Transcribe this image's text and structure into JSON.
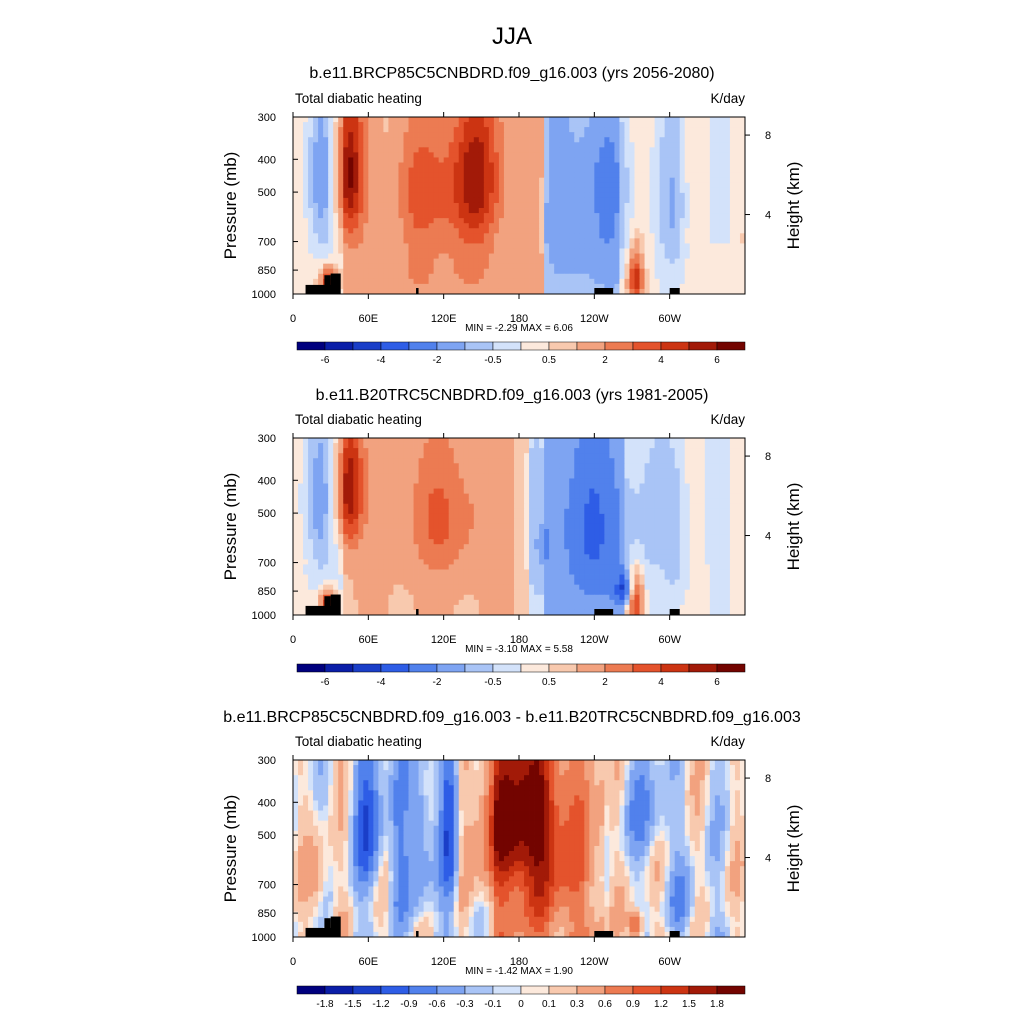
{
  "figure": {
    "title": "JJA"
  },
  "chart_data": [
    {
      "type": "heatmap",
      "title": "b.e11.BRCP85C5CNBDRD.f09_g16.003 (yrs 2056-2080)",
      "subtitle_left": "Total diabatic heating",
      "units": "K/day",
      "ylabel": "Pressure (mb)",
      "ylabel_right": "Height (km)",
      "x_ticks": [
        "0",
        "60E",
        "120E",
        "180",
        "120W",
        "60W"
      ],
      "x_tick_values": [
        0,
        60,
        120,
        180,
        240,
        300
      ],
      "xlim": [
        0,
        360
      ],
      "y_ticks": [
        "300",
        "400",
        "500",
        "700",
        "850",
        "1000"
      ],
      "y_tick_values": [
        300,
        400,
        500,
        700,
        850,
        1000
      ],
      "ylim": [
        1000,
        300
      ],
      "height_ticks": [
        "8",
        "4"
      ],
      "height_tick_values": [
        8,
        4
      ],
      "stats_label": "MIN =  -2.29  MAX =   6.06",
      "min": -2.29,
      "max": 6.06,
      "colorbar": {
        "levels": [
          "-6",
          "-4",
          "-2",
          "-0.5",
          "0.5",
          "2",
          "4",
          "6"
        ],
        "colors": [
          "#00007e",
          "#0a1ea8",
          "#1a3ec8",
          "#2e5de6",
          "#5181ec",
          "#7ea4f2",
          "#a9c4f6",
          "#d3e2fa",
          "#fce9dc",
          "#f8c9ae",
          "#f2a27f",
          "#ec7b52",
          "#e4532c",
          "#cc3412",
          "#a21a08",
          "#730400"
        ]
      },
      "anomalies": [
        {
          "lon": 45,
          "p": 440,
          "w": 7,
          "h": 150,
          "v": 5.0
        },
        {
          "lon": 110,
          "p": 500,
          "w": 20,
          "h": 150,
          "v": 2.5
        },
        {
          "lon": 148,
          "p": 450,
          "w": 14,
          "h": 170,
          "v": 4.0
        },
        {
          "lon": 28,
          "p": 930,
          "w": 4,
          "h": 60,
          "v": 5.0
        },
        {
          "lon": 273,
          "p": 900,
          "w": 4,
          "h": 110,
          "v": 4.5
        },
        {
          "lon": 20,
          "p": 450,
          "w": 8,
          "h": 220,
          "v": -1.6
        },
        {
          "lon": 245,
          "p": 470,
          "w": 20,
          "h": 150,
          "v": -1.5
        },
        {
          "lon": 235,
          "p": 780,
          "w": 24,
          "h": 120,
          "v": -1.0
        },
        {
          "lon": 305,
          "p": 550,
          "w": 8,
          "h": 260,
          "v": -1.0
        },
        {
          "lon": 120,
          "p": 880,
          "w": 60,
          "h": 120,
          "v": 0.8
        }
      ]
    },
    {
      "type": "heatmap",
      "title": "b.e11.B20TRC5CNBDRD.f09_g16.003 (yrs 1981-2005)",
      "subtitle_left": "Total diabatic heating",
      "units": "K/day",
      "ylabel": "Pressure (mb)",
      "ylabel_right": "Height (km)",
      "x_ticks": [
        "0",
        "60E",
        "120E",
        "180",
        "120W",
        "60W"
      ],
      "x_tick_values": [
        0,
        60,
        120,
        180,
        240,
        300
      ],
      "xlim": [
        0,
        360
      ],
      "y_ticks": [
        "300",
        "400",
        "500",
        "700",
        "850",
        "1000"
      ],
      "y_tick_values": [
        300,
        400,
        500,
        700,
        850,
        1000
      ],
      "ylim": [
        1000,
        300
      ],
      "height_ticks": [
        "8",
        "4"
      ],
      "height_tick_values": [
        8,
        4
      ],
      "stats_label": "MIN =  -3.10  MAX =   5.58",
      "min": -3.1,
      "max": 5.58,
      "colorbar": {
        "levels": [
          "-6",
          "-4",
          "-2",
          "-0.5",
          "0.5",
          "2",
          "4",
          "6"
        ],
        "colors": [
          "#00007e",
          "#0a1ea8",
          "#1a3ec8",
          "#2e5de6",
          "#5181ec",
          "#7ea4f2",
          "#a9c4f6",
          "#d3e2fa",
          "#fce9dc",
          "#f8c9ae",
          "#f2a27f",
          "#ec7b52",
          "#e4532c",
          "#cc3412",
          "#a21a08",
          "#730400"
        ]
      },
      "anomalies": [
        {
          "lon": 45,
          "p": 420,
          "w": 7,
          "h": 130,
          "v": 5.0
        },
        {
          "lon": 120,
          "p": 520,
          "w": 25,
          "h": 170,
          "v": 2.0
        },
        {
          "lon": 28,
          "p": 930,
          "w": 4,
          "h": 60,
          "v": 5.0
        },
        {
          "lon": 273,
          "p": 900,
          "w": 4,
          "h": 110,
          "v": 4.5
        },
        {
          "lon": 20,
          "p": 450,
          "w": 8,
          "h": 220,
          "v": -1.6
        },
        {
          "lon": 240,
          "p": 560,
          "w": 25,
          "h": 260,
          "v": -2.0
        },
        {
          "lon": 265,
          "p": 840,
          "w": 6,
          "h": 60,
          "v": -3.0
        },
        {
          "lon": 305,
          "p": 560,
          "w": 8,
          "h": 240,
          "v": -1.0
        },
        {
          "lon": 200,
          "p": 650,
          "w": 10,
          "h": 200,
          "v": -0.6
        }
      ]
    },
    {
      "type": "heatmap",
      "title": "b.e11.BRCP85C5CNBDRD.f09_g16.003 - b.e11.B20TRC5CNBDRD.f09_g16.003",
      "subtitle_left": "Total diabatic heating",
      "units": "K/day",
      "ylabel": "Pressure (mb)",
      "ylabel_right": "Height (km)",
      "x_ticks": [
        "0",
        "60E",
        "120E",
        "180",
        "120W",
        "60W"
      ],
      "x_tick_values": [
        0,
        60,
        120,
        180,
        240,
        300
      ],
      "xlim": [
        0,
        360
      ],
      "y_ticks": [
        "300",
        "400",
        "500",
        "700",
        "850",
        "1000"
      ],
      "y_tick_values": [
        300,
        400,
        500,
        700,
        850,
        1000
      ],
      "ylim": [
        1000,
        300
      ],
      "height_ticks": [
        "8",
        "4"
      ],
      "height_tick_values": [
        8,
        4
      ],
      "stats_label": "MIN =  -1.42  MAX =   1.90",
      "min": -1.42,
      "max": 1.9,
      "colorbar": {
        "levels": [
          "-1.8",
          "-1.5",
          "-1.2",
          "-0.9",
          "-0.6",
          "-0.3",
          "-0.1",
          "0",
          "0.1",
          "0.3",
          "0.6",
          "0.9",
          "1.2",
          "1.5",
          "1.8"
        ],
        "colors": [
          "#00007e",
          "#0a1ea8",
          "#1a3ec8",
          "#2e5de6",
          "#5181ec",
          "#7ea4f2",
          "#a9c4f6",
          "#d3e2fa",
          "#fce9dc",
          "#f8c9ae",
          "#f2a27f",
          "#ec7b52",
          "#e4532c",
          "#cc3412",
          "#a21a08",
          "#730400"
        ]
      },
      "anomalies": [
        {
          "lon": 180,
          "p": 440,
          "w": 22,
          "h": 170,
          "v": 1.4
        },
        {
          "lon": 195,
          "p": 650,
          "w": 30,
          "h": 300,
          "v": 0.7
        },
        {
          "lon": 60,
          "p": 470,
          "w": 8,
          "h": 180,
          "v": -1.0
        },
        {
          "lon": 100,
          "p": 500,
          "w": 6,
          "h": 250,
          "v": -0.8
        },
        {
          "lon": 125,
          "p": 480,
          "w": 5,
          "h": 280,
          "v": -1.2
        },
        {
          "lon": 85,
          "p": 600,
          "w": 5,
          "h": 230,
          "v": -0.6
        },
        {
          "lon": 280,
          "p": 430,
          "w": 15,
          "h": 100,
          "v": -0.5
        },
        {
          "lon": 273,
          "p": 930,
          "w": 4,
          "h": 60,
          "v": 1.2
        },
        {
          "lon": 20,
          "p": 700,
          "w": 6,
          "h": 150,
          "v": 0.5
        },
        {
          "lon": 310,
          "p": 800,
          "w": 8,
          "h": 130,
          "v": -0.5
        }
      ]
    }
  ]
}
